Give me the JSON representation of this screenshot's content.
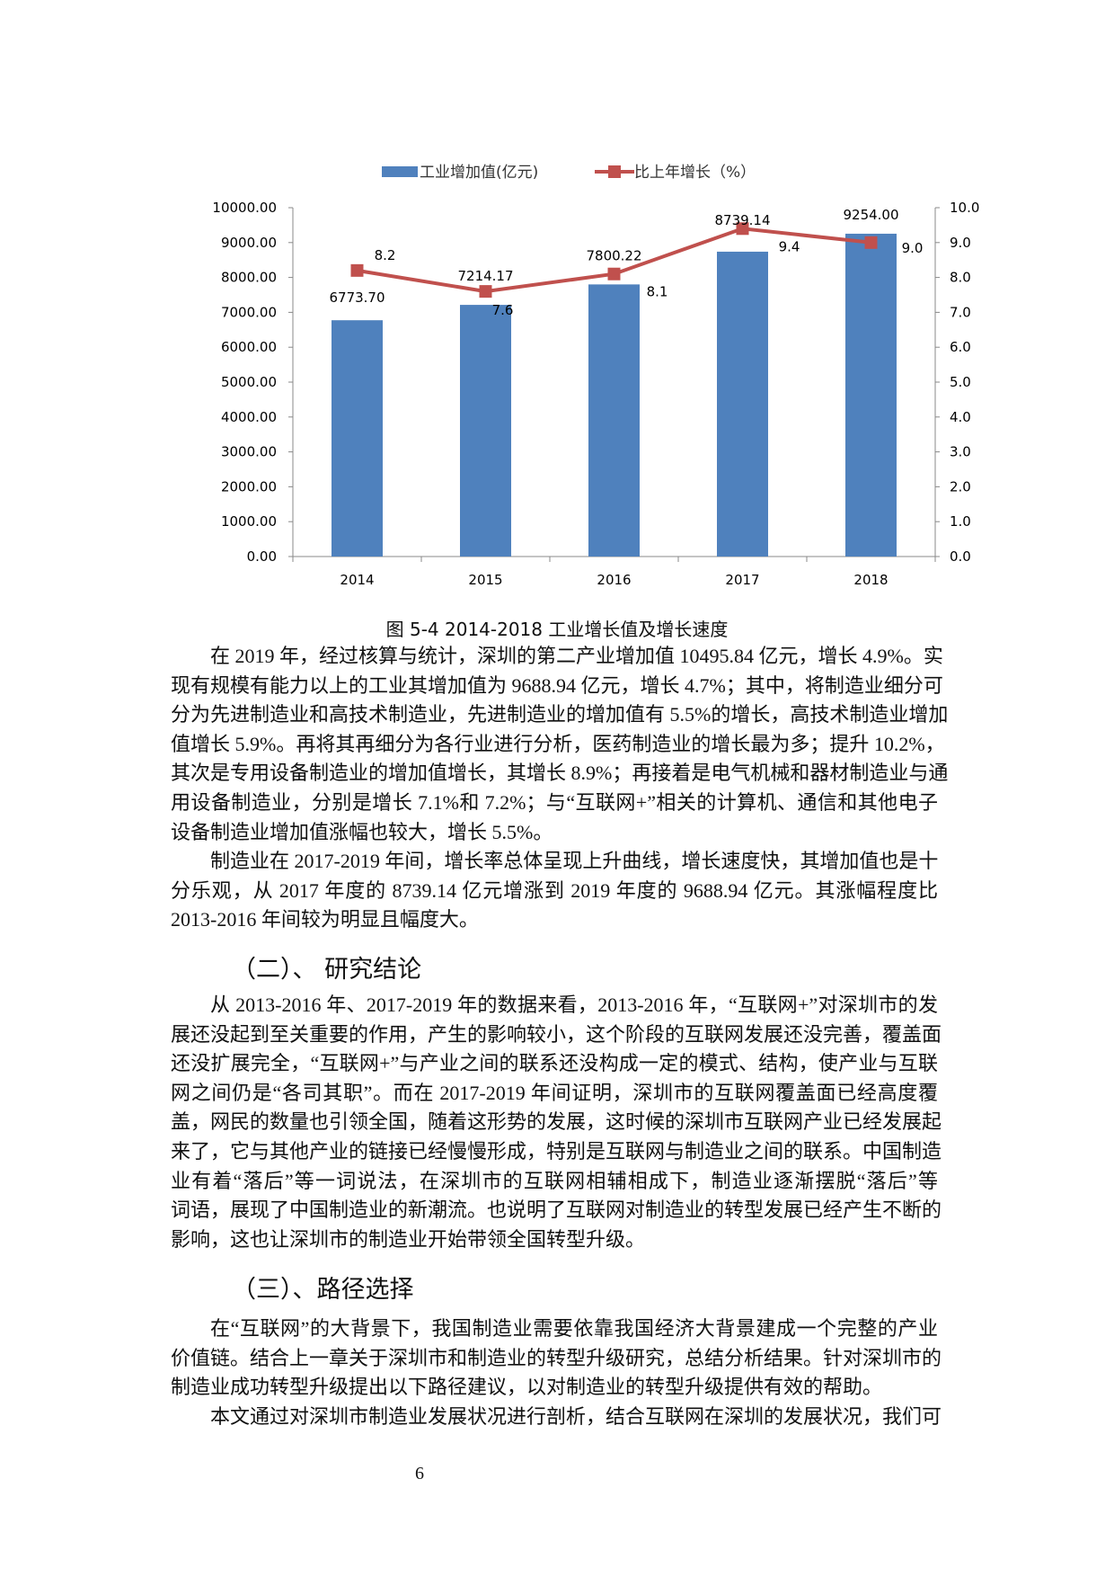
{
  "chart_data": {
    "type": "bar",
    "categories": [
      "2014",
      "2015",
      "2016",
      "2017",
      "2018"
    ],
    "series": [
      {
        "name": "工业增加值(亿元)",
        "kind": "bar",
        "axis": "left",
        "values": [
          6773.7,
          7214.17,
          7800.22,
          8739.14,
          9254.0
        ],
        "labels": [
          "6773.70",
          "7214.17",
          "7800.22",
          "8739.14",
          "9254.00"
        ],
        "color": "#4f81bd"
      },
      {
        "name": "比上年增长（%）",
        "kind": "line",
        "axis": "right",
        "values": [
          8.2,
          7.6,
          8.1,
          9.4,
          9.0
        ],
        "labels": [
          "8.2",
          "7.6",
          "8.1",
          "9.4",
          "9.0"
        ],
        "color": "#c0504d"
      }
    ],
    "y_left": {
      "range": [
        0,
        10000
      ],
      "ticks": [
        "0.00",
        "1000.00",
        "2000.00",
        "3000.00",
        "4000.00",
        "5000.00",
        "6000.00",
        "7000.00",
        "8000.00",
        "9000.00",
        "10000.00"
      ]
    },
    "y_right": {
      "range": [
        0,
        10
      ],
      "ticks": [
        "0.0",
        "1.0",
        "2.0",
        "3.0",
        "4.0",
        "5.0",
        "6.0",
        "7.0",
        "8.0",
        "9.0",
        "10.0"
      ]
    },
    "legend": "top",
    "grid": false,
    "caption": "图  5-4  2014-2018 工业增长值及增长速度"
  },
  "paragraphs": [
    {
      "lines": [
        "在 2019 年，经过核算与统计，深圳的第二产业增加值 10495.84 亿元，增长 4.9%。实",
        "现有规模有能力以上的工业其增加值为 9688.94 亿元，增长 4.7%；其中，将制造业细分可",
        "分为先进制造业和高技术制造业，先进制造业的增加值有 5.5%的增长，高技术制造业增加",
        "值增长 5.9%。再将其再细分为各行业进行分析，医药制造业的增长最为多；提升 10.2%，",
        "其次是专用设备制造业的增加值增长，其增长 8.9%；再接着是电气机械和器材制造业与通",
        "用设备制造业，分别是增长 7.1%和 7.2%；与“互联网+”相关的计算机、通信和其他电子",
        "设备制造业增加值涨幅也较大，增长 5.5%。"
      ]
    },
    {
      "lines": [
        "制造业在 2017-2019 年间，增长率总体呈现上升曲线，增长速度快，其增加值也是十",
        "分乐观，从 2017 年度的 8739.14 亿元增涨到 2019 年度的 9688.94 亿元。其涨幅程度比",
        "2013-2016 年间较为明显且幅度大。"
      ]
    },
    {
      "lines": [
        "从 2013-2016 年、2017-2019 年的数据来看，2013-2016 年，“互联网+”对深圳市的发",
        "展还没起到至关重要的作用，产生的影响较小，这个阶段的互联网发展还没完善，覆盖面",
        "还没扩展完全，“互联网+”与产业之间的联系还没构成一定的模式、结构，使产业与互联",
        "网之间仍是“各司其职”。而在 2017-2019 年间证明，深圳市的互联网覆盖面已经高度覆",
        "盖，网民的数量也引领全国，随着这形势的发展，这时候的深圳市互联网产业已经发展起",
        "来了，它与其他产业的链接已经慢慢形成，特别是互联网与制造业之间的联系。中国制造",
        "业有着“落后”等一词说法，在深圳市的互联网相辅相成下，制造业逐渐摆脱“落后”等",
        "词语，展现了中国制造业的新潮流。也说明了互联网对制造业的转型发展已经产生不断的",
        "影响，这也让深圳市的制造业开始带领全国转型升级。"
      ]
    },
    {
      "lines": [
        "在“互联网”的大背景下，我国制造业需要依靠我国经济大背景建成一个完整的产业",
        "价值链。结合上一章关于深圳市和制造业的转型升级研究，总结分析结果。针对深圳市的",
        "制造业成功转型升级提出以下路径建议，以对制造业的转型升级提供有效的帮助。"
      ]
    },
    {
      "lines": [
        "本文通过对深圳市制造业发展状况进行剖析，结合互联网在深圳的发展状况，我们可"
      ]
    }
  ],
  "headings": [
    "（二）、 研究结论",
    "（三）、路径选择"
  ],
  "page_number": "6"
}
